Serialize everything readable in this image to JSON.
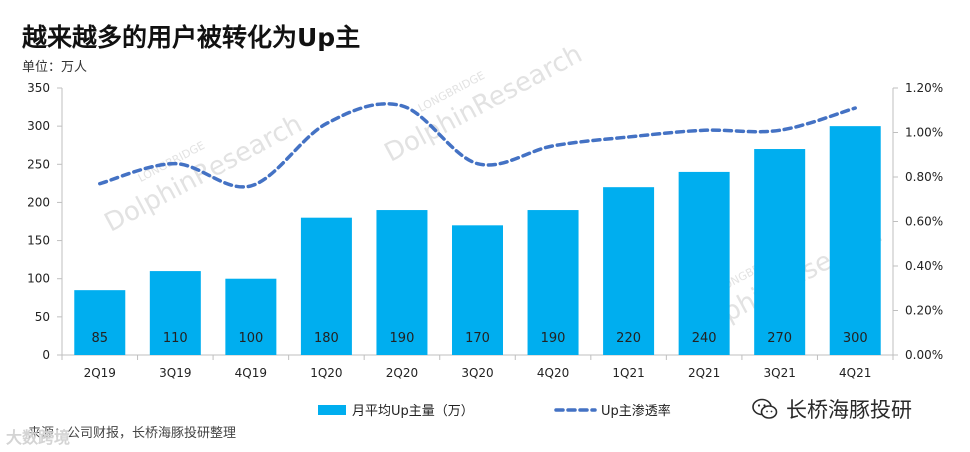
{
  "header": {
    "title": "越来越多的用户被转化为Up主",
    "unit": "单位：万人"
  },
  "footer": {
    "source": "来源：公司财报，长桥海豚投研整理",
    "watermark": "大数跨境"
  },
  "brand": {
    "name": "长桥海豚投研",
    "icon": "wechat-icon"
  },
  "watermark": {
    "line1": "LONGBRIDGE",
    "line2": "DolphinResearch"
  },
  "colors": {
    "bar": "#00AEEF",
    "line": "#4472C4",
    "axis": "#bfbfbf"
  },
  "chart_data": {
    "type": "bar+line",
    "title": "越来越多的用户被转化为Up主",
    "ylabel": "单位：万人",
    "categories": [
      "2Q19",
      "3Q19",
      "4Q19",
      "1Q20",
      "2Q20",
      "3Q20",
      "4Q20",
      "1Q21",
      "2Q21",
      "3Q21",
      "4Q21"
    ],
    "series": [
      {
        "name": "月平均Up主量（万）",
        "type": "bar",
        "axis": "left",
        "values": [
          85,
          110,
          100,
          180,
          190,
          170,
          190,
          220,
          240,
          270,
          300
        ],
        "data_labels": [
          "85",
          "110",
          "100",
          "180",
          "190",
          "170",
          "190",
          "220",
          "240",
          "270",
          "300"
        ]
      },
      {
        "name": "Up主渗透率",
        "type": "line",
        "style": "dashed-smooth",
        "axis": "right",
        "values": [
          0.0077,
          0.0086,
          0.0076,
          0.0104,
          0.0112,
          0.0086,
          0.0094,
          0.0098,
          0.0101,
          0.0101,
          0.0111
        ]
      }
    ],
    "y_left": {
      "min": 0,
      "max": 350,
      "ticks": [
        0,
        50,
        100,
        150,
        200,
        250,
        300,
        350
      ],
      "tick_labels": [
        "0",
        "50",
        "100",
        "150",
        "200",
        "250",
        "300",
        "350"
      ]
    },
    "y_right": {
      "min": 0,
      "max": 0.012,
      "ticks": [
        0,
        0.002,
        0.004,
        0.006,
        0.008,
        0.01,
        0.012
      ],
      "tick_labels": [
        "0.00%",
        "0.20%",
        "0.40%",
        "0.60%",
        "0.80%",
        "1.00%",
        "1.20%"
      ]
    },
    "legend_position": "bottom",
    "grid": false
  }
}
